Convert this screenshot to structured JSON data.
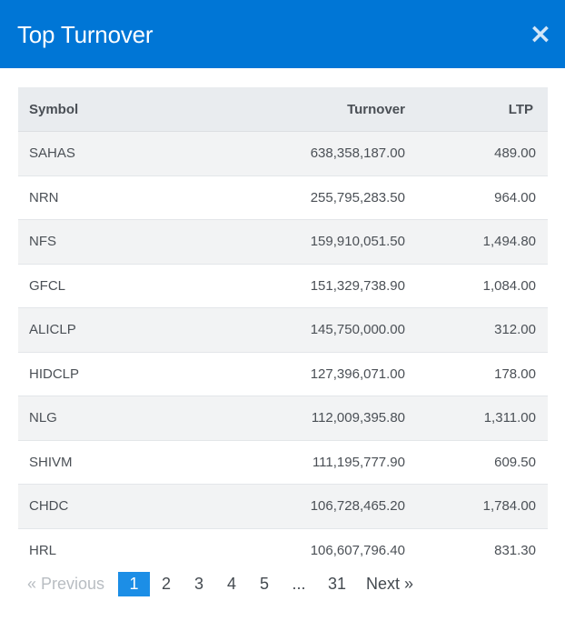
{
  "modal": {
    "title": "Top Turnover",
    "close_label": "×"
  },
  "table": {
    "columns": {
      "symbol": "Symbol",
      "turnover": "Turnover",
      "ltp": "LTP"
    },
    "rows": [
      {
        "symbol": "SAHAS",
        "turnover": "638,358,187.00",
        "ltp": "489.00"
      },
      {
        "symbol": "NRN",
        "turnover": "255,795,283.50",
        "ltp": "964.00"
      },
      {
        "symbol": "NFS",
        "turnover": "159,910,051.50",
        "ltp": "1,494.80"
      },
      {
        "symbol": "GFCL",
        "turnover": "151,329,738.90",
        "ltp": "1,084.00"
      },
      {
        "symbol": "ALICLP",
        "turnover": "145,750,000.00",
        "ltp": "312.00"
      },
      {
        "symbol": "HIDCLP",
        "turnover": "127,396,071.00",
        "ltp": "178.00"
      },
      {
        "symbol": "NLG",
        "turnover": "112,009,395.80",
        "ltp": "1,311.00"
      },
      {
        "symbol": "SHIVM",
        "turnover": "111,195,777.90",
        "ltp": "609.50"
      },
      {
        "symbol": "CHDC",
        "turnover": "106,728,465.20",
        "ltp": "1,784.00"
      },
      {
        "symbol": "HRL",
        "turnover": "106,607,796.40",
        "ltp": "831.30"
      }
    ]
  },
  "pagination": {
    "previous": "«   Previous",
    "pages": [
      "1",
      "2",
      "3",
      "4",
      "5"
    ],
    "ellipsis": "...",
    "last_page": "31",
    "next": "Next  »",
    "current_page": "1"
  },
  "colors": {
    "header_bg": "#0076d6",
    "active_page": "#1c8ee6",
    "table_head_bg": "#e9ecef",
    "striped_row": "#f2f3f4"
  },
  "icons": {
    "close": "close-icon"
  }
}
